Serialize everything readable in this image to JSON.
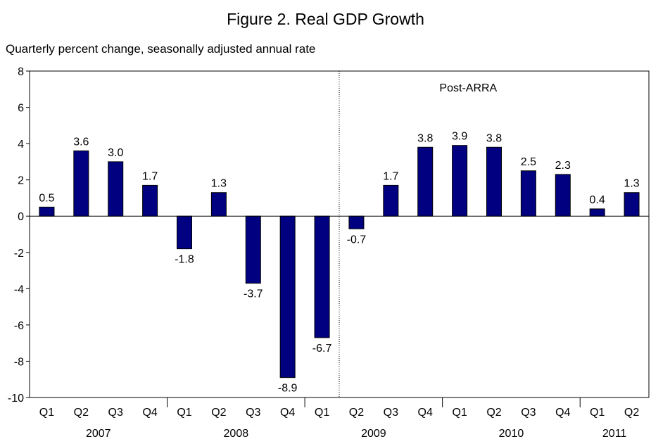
{
  "chart_data": {
    "type": "bar",
    "title": "Figure 2.  Real GDP Growth",
    "subtitle": "Quarterly percent change, seasonally adjusted annual rate",
    "xlabel": "",
    "ylabel": "",
    "ylim": [
      -10,
      8
    ],
    "yticks": [
      "8",
      "6",
      "4",
      "2",
      "0",
      "-2",
      "-4",
      "-6",
      "-8",
      "-10"
    ],
    "ytick_values": [
      8,
      6,
      4,
      2,
      0,
      -2,
      -4,
      -6,
      -8,
      -10
    ],
    "categories": [
      "Q1",
      "Q2",
      "Q3",
      "Q4",
      "Q1",
      "Q2",
      "Q3",
      "Q4",
      "Q1",
      "Q2",
      "Q3",
      "Q4",
      "Q1",
      "Q2",
      "Q3",
      "Q4",
      "Q1",
      "Q2"
    ],
    "values": [
      0.5,
      3.6,
      3.0,
      1.7,
      -1.8,
      1.3,
      -3.7,
      -8.9,
      -6.7,
      -0.7,
      1.7,
      3.8,
      3.9,
      3.8,
      2.5,
      2.3,
      0.4,
      1.3
    ],
    "value_labels": [
      "0.5",
      "3.6",
      "3.0",
      "1.7",
      "-1.8",
      "1.3",
      "-3.7",
      "-8.9",
      "-6.7",
      "-0.7",
      "1.7",
      "3.8",
      "3.9",
      "3.8",
      "2.5",
      "2.3",
      "0.4",
      "1.3"
    ],
    "years": [
      {
        "label": "2007",
        "start": 0,
        "end": 3
      },
      {
        "label": "2008",
        "start": 4,
        "end": 7
      },
      {
        "label": "2009",
        "start": 8,
        "end": 11
      },
      {
        "label": "2010",
        "start": 12,
        "end": 15
      },
      {
        "label": "2011",
        "start": 16,
        "end": 17
      }
    ],
    "annotation": {
      "text": "Post-ARRA"
    },
    "grid": false,
    "bar_color": "#000080"
  }
}
